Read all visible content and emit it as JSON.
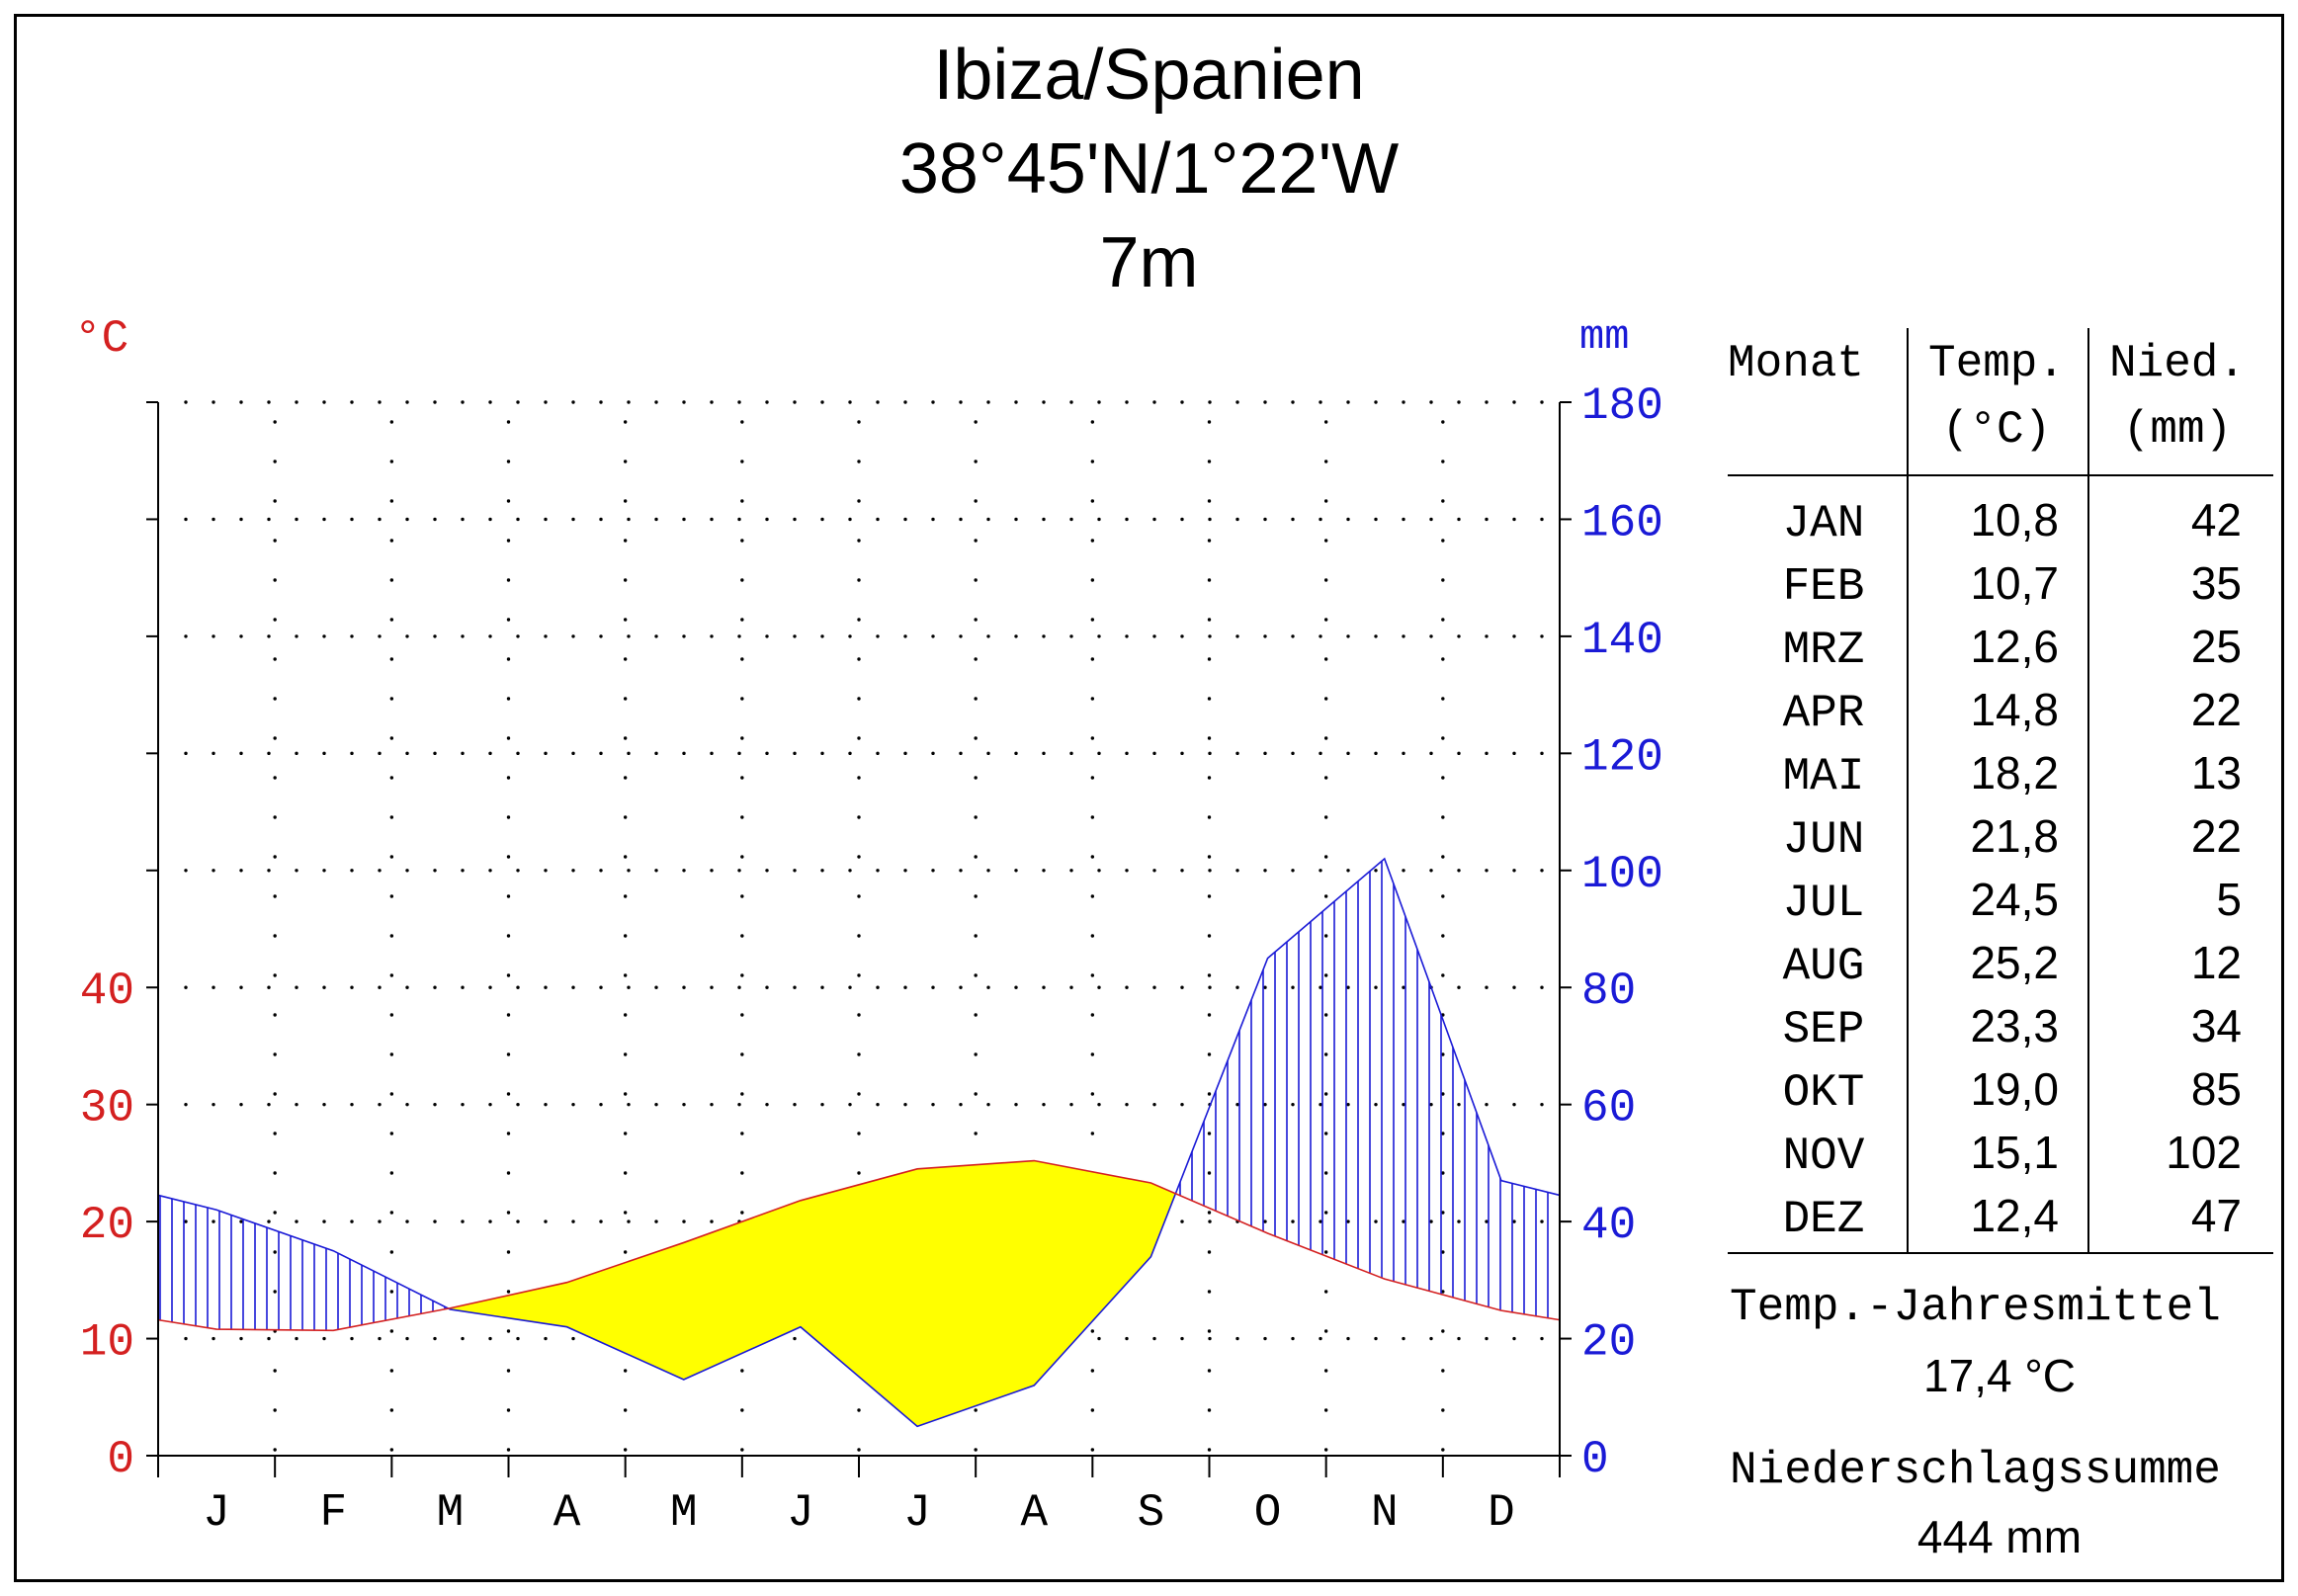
{
  "chart_data": {
    "type": "climate-diagram",
    "title": "Ibiza/Spanien",
    "coordinates": "38°45'N/1°22'W",
    "elevation": "7m",
    "temp_unit_label": "°C",
    "precip_unit_label": "mm",
    "month_letters": [
      "J",
      "F",
      "M",
      "A",
      "M",
      "J",
      "J",
      "A",
      "S",
      "O",
      "N",
      "D"
    ],
    "temp_axis_ticks": [
      0,
      10,
      20,
      30,
      40
    ],
    "precip_axis_ticks": [
      0,
      20,
      40,
      60,
      80,
      100,
      120,
      140,
      160,
      180
    ],
    "temp_range": [
      0,
      90
    ],
    "precip_range": [
      0,
      180
    ],
    "temperature_c": [
      10.8,
      10.7,
      12.6,
      14.8,
      18.2,
      21.8,
      24.5,
      25.2,
      23.3,
      19.0,
      15.1,
      12.4
    ],
    "precipitation_mm": [
      42,
      35,
      25,
      22,
      13,
      22,
      5,
      12,
      34,
      85,
      102,
      47
    ],
    "colors": {
      "temperature": "#d42020",
      "precipitation": "#1a1ad6",
      "arid": "#ffff00"
    }
  },
  "table": {
    "headers": {
      "month": "Monat",
      "temp_line1": "Temp.",
      "temp_line2": "(°C)",
      "precip_line1": "Nied.",
      "precip_line2": "(mm)"
    },
    "rows": [
      {
        "month": "JAN",
        "temp": "10,8",
        "precip": "42"
      },
      {
        "month": "FEB",
        "temp": "10,7",
        "precip": "35"
      },
      {
        "month": "MRZ",
        "temp": "12,6",
        "precip": "25"
      },
      {
        "month": "APR",
        "temp": "14,8",
        "precip": "22"
      },
      {
        "month": "MAI",
        "temp": "18,2",
        "precip": "13"
      },
      {
        "month": "JUN",
        "temp": "21,8",
        "precip": "22"
      },
      {
        "month": "JUL",
        "temp": "24,5",
        "precip": "5"
      },
      {
        "month": "AUG",
        "temp": "25,2",
        "precip": "12"
      },
      {
        "month": "SEP",
        "temp": "23,3",
        "precip": "34"
      },
      {
        "month": "OKT",
        "temp": "19,0",
        "precip": "85"
      },
      {
        "month": "NOV",
        "temp": "15,1",
        "precip": "102"
      },
      {
        "month": "DEZ",
        "temp": "12,4",
        "precip": "47"
      }
    ]
  },
  "summary": {
    "temp_mean_label": "Temp.-Jahresmittel",
    "temp_mean_value": "17,4 °C",
    "precip_sum_label": "Niederschlagssumme",
    "precip_sum_value": "444 mm"
  }
}
